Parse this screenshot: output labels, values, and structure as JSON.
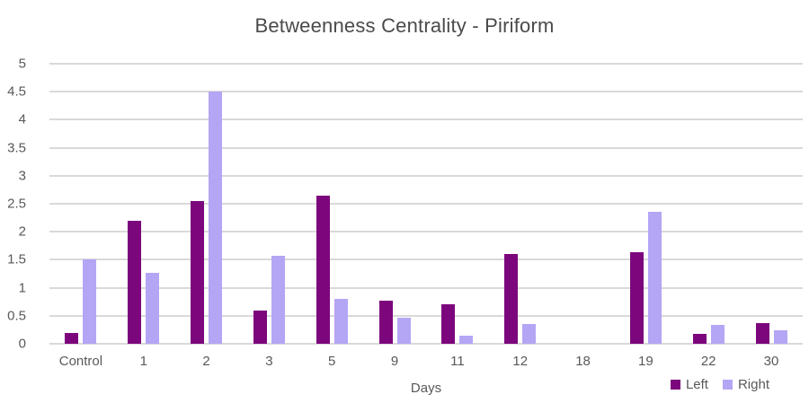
{
  "chart_data": {
    "type": "bar",
    "title": "Betweenness Centrality - Piriform",
    "xlabel": "Days",
    "ylabel": "",
    "ylim": [
      0,
      5
    ],
    "y_tick_step": 0.5,
    "y_ticks": [
      "5",
      "4.5",
      "4",
      "3.5",
      "3",
      "2.5",
      "2",
      "1.5",
      "1",
      "0.5",
      "0"
    ],
    "grid": "horizontal",
    "legend_position": "bottom-right",
    "categories": [
      "Control",
      "1",
      "2",
      "3",
      "5",
      "9",
      "11",
      "12",
      "18",
      "19",
      "22",
      "30"
    ],
    "series": [
      {
        "name": "Left",
        "color": "#7c067c",
        "values": [
          0.2,
          2.2,
          2.55,
          0.6,
          2.65,
          0.77,
          0.7,
          1.6,
          0,
          1.63,
          0.17,
          0.37
        ]
      },
      {
        "name": "Right",
        "color": "#b5a5f5",
        "values": [
          1.5,
          1.27,
          4.5,
          1.57,
          0.8,
          0.47,
          0.15,
          0.35,
          0,
          2.35,
          0.33,
          0.24
        ]
      }
    ],
    "colors": {
      "gridline": "#d9d9d9",
      "title_text": "#4a4a4a",
      "axis_text": "#595959",
      "background": "#ffffff"
    }
  }
}
